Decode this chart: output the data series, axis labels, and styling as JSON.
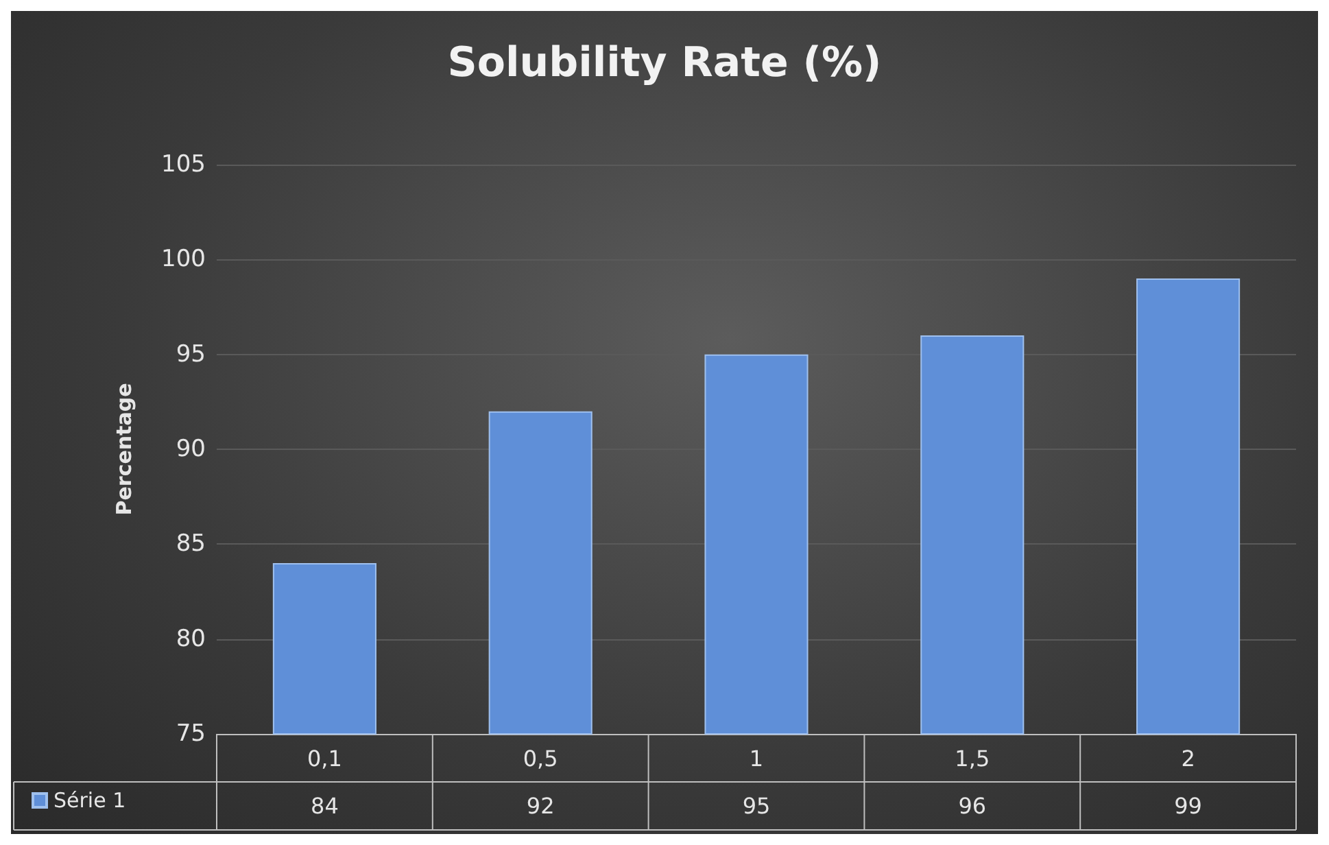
{
  "chart_data": {
    "type": "bar",
    "title": "Solubility Rate (%)",
    "ylabel": "Percentage",
    "categories": [
      "0,1",
      "0,5",
      "1",
      "1,5",
      "2"
    ],
    "series": [
      {
        "name": "Série 1",
        "color": "#5f8fd8",
        "values": [
          84,
          92,
          95,
          96,
          99
        ]
      }
    ],
    "ylim": [
      75,
      105
    ],
    "yticks": [
      75,
      80,
      85,
      90,
      95,
      100,
      105
    ],
    "grid": "y",
    "legend": "bottom left",
    "data_labels": true
  }
}
